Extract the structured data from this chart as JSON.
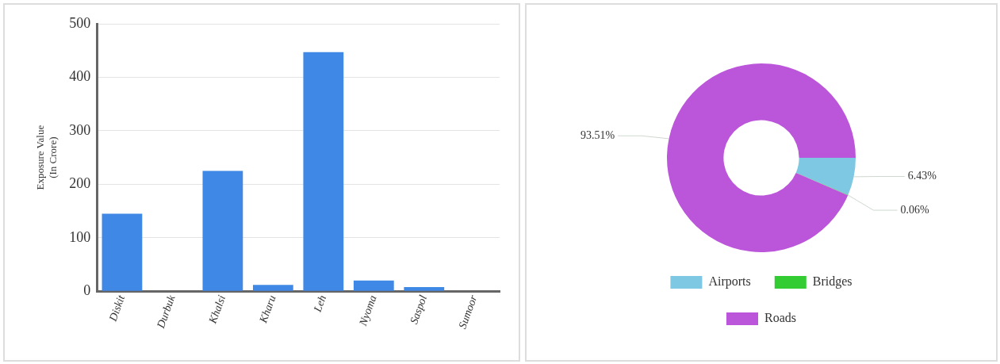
{
  "chart_data": [
    {
      "type": "bar",
      "ylabel": "Exposure Value\n(In Crore)",
      "categories": [
        "Diskit",
        "Durbuk",
        "Khalsi",
        "Kharu",
        "Leh",
        "Nyoma",
        "Saspol",
        "Sumoor"
      ],
      "values": [
        145,
        0,
        225,
        12,
        447,
        20,
        8,
        0
      ],
      "color": "#3f88e6",
      "ylim": [
        0,
        500
      ],
      "yticks": [
        0,
        100,
        200,
        300,
        400,
        500
      ],
      "grid": "y"
    },
    {
      "type": "donut",
      "categories": [
        "Airports",
        "Bridges",
        "Roads"
      ],
      "values": [
        6.43,
        0.06,
        93.51
      ],
      "colors": [
        "#7ec8e3",
        "#33cc33",
        "#bb55d9"
      ],
      "value_labels": [
        "6.43%",
        "0.06%",
        "93.51%"
      ],
      "legend": "bottom"
    }
  ]
}
